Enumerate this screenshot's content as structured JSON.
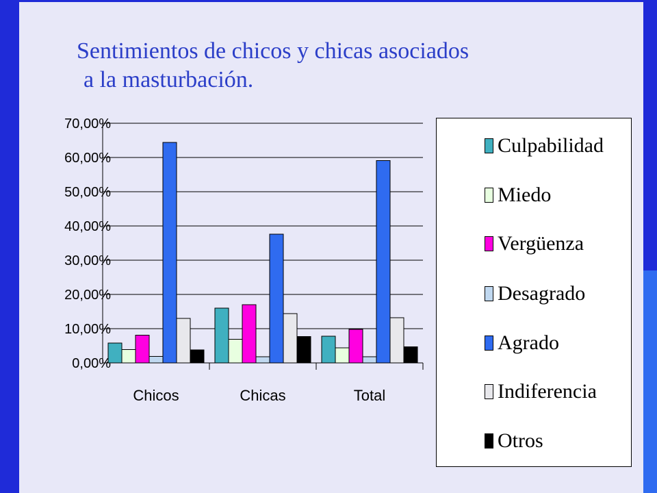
{
  "slide": {
    "title_line1": "Sentimientos de chicos y chicas asociados",
    "title_line2": "a la masturbación."
  },
  "colors": {
    "slide_background": "#e8e8f8",
    "frame": "#1f2bd8",
    "title_text": "#2b3ec8"
  },
  "chart_data": {
    "type": "bar",
    "title": "",
    "xlabel": "",
    "ylabel": "",
    "categories": [
      "Chicos",
      "Chicas",
      "Total"
    ],
    "ylim": [
      0,
      70
    ],
    "y_ticks": [
      "0,00%",
      "10,00%",
      "20,00%",
      "30,00%",
      "40,00%",
      "50,00%",
      "60,00%",
      "70,00%"
    ],
    "grid": true,
    "legend_position": "right",
    "series": [
      {
        "name": "Culpabilidad",
        "color": "#40b0c0",
        "values": [
          5.8,
          16.0,
          7.8
        ]
      },
      {
        "name": "Miedo",
        "color": "#e8ffe0",
        "values": [
          3.9,
          6.9,
          4.4
        ]
      },
      {
        "name": "Vergüenza",
        "color": "#ff00e0",
        "values": [
          8.1,
          17.0,
          9.8
        ]
      },
      {
        "name": "Desagrado",
        "color": "#c0d8f0",
        "values": [
          1.9,
          1.8,
          1.8
        ]
      },
      {
        "name": "Agrado",
        "color": "#2f6bf0",
        "values": [
          64.4,
          37.6,
          59.1
        ]
      },
      {
        "name": "Indiferencia",
        "color": "#e8e8ec",
        "values": [
          13.0,
          14.4,
          13.2
        ]
      },
      {
        "name": "Otros",
        "color": "#000000",
        "values": [
          3.8,
          7.7,
          4.7
        ]
      }
    ]
  }
}
